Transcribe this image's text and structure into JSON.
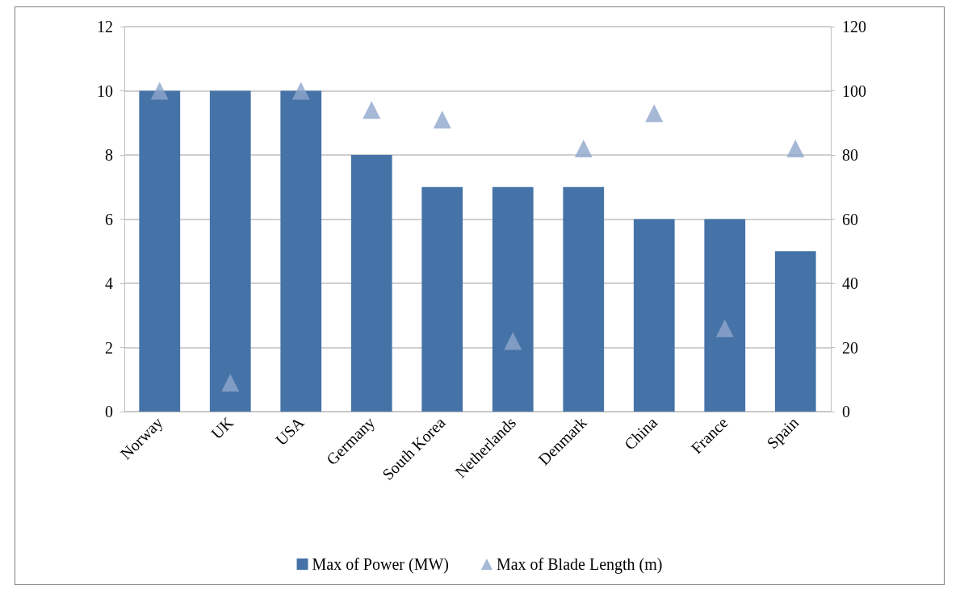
{
  "chart_data": {
    "type": "bar",
    "categories": [
      "Norway",
      "UK",
      "USA",
      "Germany",
      "South Korea",
      "Netherlands",
      "Denmark",
      "China",
      "France",
      "Spain"
    ],
    "series": [
      {
        "name": "Max of Power (MW)",
        "color": "#4573a7",
        "values": [
          10,
          10,
          10,
          8,
          7,
          7,
          7,
          6,
          6,
          5
        ]
      },
      {
        "name": "Max of Blade Length (m)",
        "type": "scatter",
        "axis": "y2",
        "color": "#8fa6cc",
        "values": [
          100,
          9,
          100,
          94,
          91,
          22,
          82,
          93,
          26,
          82
        ]
      }
    ],
    "ylim": [
      0,
      12
    ],
    "yticks": [
      0,
      2,
      4,
      6,
      8,
      10,
      12
    ],
    "y2lim": [
      0,
      120
    ],
    "y2ticks": [
      0,
      20,
      40,
      60,
      80,
      100,
      120
    ],
    "grid": "y",
    "legend": "bottom",
    "marker": "triangle"
  }
}
